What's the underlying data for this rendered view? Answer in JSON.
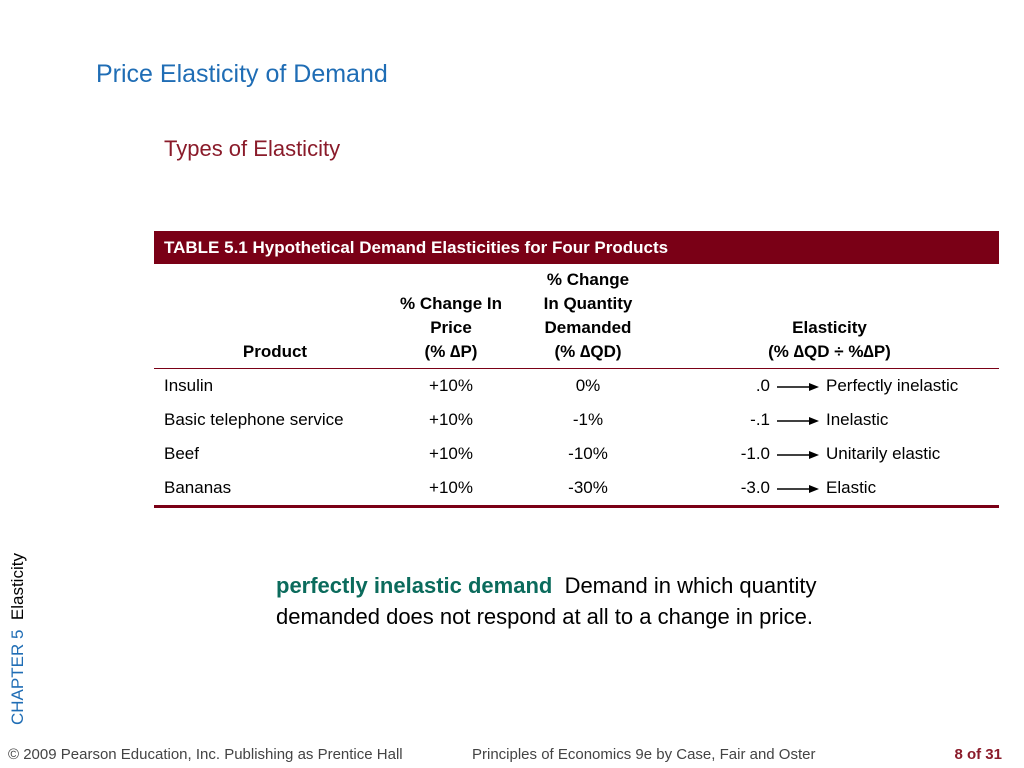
{
  "slide": {
    "title": "Price Elasticity of Demand",
    "subtitle": "Types of Elasticity"
  },
  "table": {
    "caption": "TABLE 5.1  Hypothetical Demand Elasticities for Four Products",
    "headers": {
      "product": "Product",
      "price_line1": "% Change In",
      "price_line2": "Price",
      "price_line3": "(% ∆P)",
      "qty_line1": "% Change",
      "qty_line2": "In Quantity",
      "qty_line3": "Demanded",
      "qty_line4": "(% ∆QD)",
      "elasticity_line1": "Elasticity",
      "elasticity_line2": "(% ∆QD ÷ %∆P)"
    },
    "rows": [
      {
        "product": "Insulin",
        "price": "+10%",
        "quantity": "0%",
        "elasticity": ".0",
        "type": "Perfectly inelastic"
      },
      {
        "product": "Basic telephone service",
        "price": "+10%",
        "quantity": "-1%",
        "elasticity": "-.1",
        "type": "Inelastic"
      },
      {
        "product": "Beef",
        "price": "+10%",
        "quantity": "-10%",
        "elasticity": "-1.0",
        "type": "Unitarily elastic"
      },
      {
        "product": "Bananas",
        "price": "+10%",
        "quantity": "-30%",
        "elasticity": "-3.0",
        "type": "Elastic"
      }
    ],
    "accent_color": "#7a0016"
  },
  "definition": {
    "term": "perfectly inelastic demand",
    "text": "Demand in which quantity demanded does not respond at all to a change in price."
  },
  "sidebar": {
    "chapter": "CHAPTER 5",
    "topic": "Elasticity"
  },
  "footer": {
    "copyright": "© 2009 Pearson Education, Inc. Publishing as Prentice Hall",
    "book": "Principles of Economics 9e by Case, Fair and Oster",
    "page": "8 of 31"
  },
  "colors": {
    "title": "#1f6db5",
    "subtitle": "#8a1b2a",
    "term": "#0b6b5c"
  }
}
